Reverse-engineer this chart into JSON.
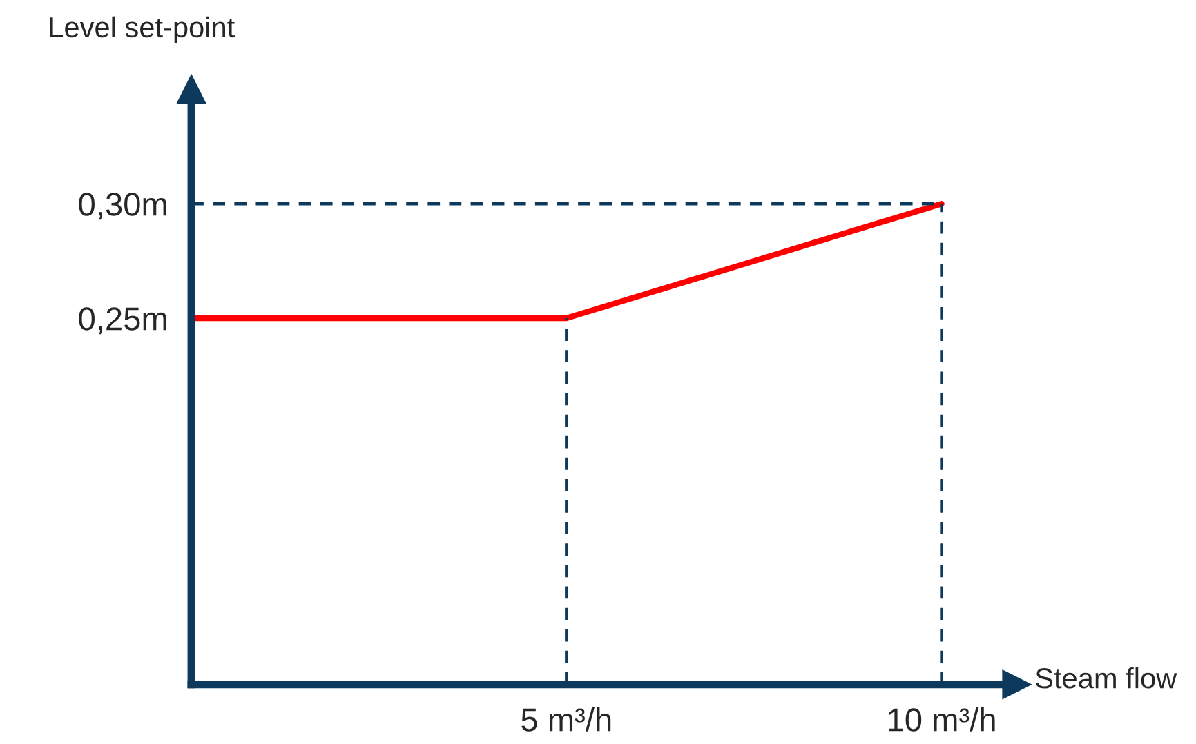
{
  "chart_data": {
    "type": "line",
    "xlabel": "Steam flow",
    "ylabel": "Level set-point",
    "x": [
      0,
      5,
      10
    ],
    "series": [
      {
        "color": "#ff0000",
        "values": [
          0.25,
          0.25,
          0.3
        ]
      }
    ],
    "xlim": [
      0,
      11
    ],
    "ylim": [
      0.09,
      0.35
    ],
    "xticks": [
      {
        "value": 5,
        "label": "5 m³/h"
      },
      {
        "value": 10,
        "label": "10 m³/h"
      }
    ],
    "yticks": [
      {
        "value": 0.25,
        "label": "0,25m"
      },
      {
        "value": 0.3,
        "label": "0,30m"
      }
    ],
    "ref_lines": [
      {
        "axis": "x",
        "value": 5,
        "color": "#0d3a5c",
        "line_style": "dashed"
      },
      {
        "axis": "x",
        "value": 10,
        "color": "#0d3a5c",
        "line_style": "dashed"
      },
      {
        "axis": "y",
        "value": 0.3,
        "color": "#0d3a5c",
        "line_style": "dashed"
      }
    ],
    "grid": false,
    "legend": false,
    "marker": "none",
    "line_style": "solid"
  }
}
